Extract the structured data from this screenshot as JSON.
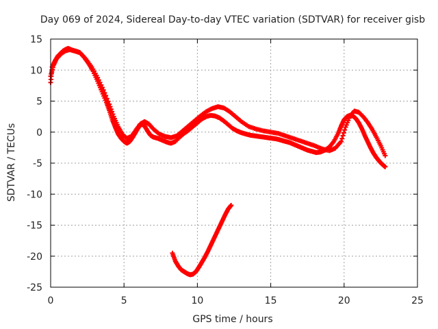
{
  "chart_data": {
    "type": "scatter",
    "title": "Day 069 of 2024, Sidereal Day-to-day VTEC variation (SDTVAR) for receiver gisb",
    "xlabel": "GPS time / hours",
    "ylabel": "SDTVAR / TECUs",
    "xlim": [
      0,
      25
    ],
    "ylim": [
      -25,
      15
    ],
    "xticks": [
      0,
      5,
      10,
      15,
      20,
      25
    ],
    "yticks": [
      -25,
      -20,
      -15,
      -10,
      -5,
      0,
      5,
      10,
      15
    ],
    "grid": true,
    "marker": "+",
    "series": [
      {
        "name": "main-track",
        "color": "#ff0000",
        "x": [
          0.0,
          0.1,
          0.3,
          0.5,
          0.8,
          1.0,
          1.2,
          1.5,
          1.8,
          2.0,
          2.3,
          2.6,
          2.9,
          3.2,
          3.5,
          3.8,
          4.0,
          4.2,
          4.4,
          4.6,
          4.8,
          5.0,
          5.2,
          5.4,
          5.6,
          5.8,
          6.0,
          6.2,
          6.4,
          6.6,
          6.8,
          7.0,
          7.3,
          7.6,
          7.9,
          8.2,
          8.5,
          8.8,
          9.1,
          9.4,
          9.7,
          10.0,
          10.3,
          10.6,
          10.9,
          11.2,
          11.5,
          11.8,
          12.1,
          12.4,
          12.7,
          13.0,
          13.3,
          13.6,
          13.9,
          14.2,
          14.5,
          14.8,
          15.1,
          15.4,
          15.7,
          16.0,
          16.3,
          16.6,
          16.9,
          17.2,
          17.5,
          17.8,
          18.1,
          18.4,
          18.7,
          19.0,
          19.3,
          19.6,
          19.8,
          20.0,
          20.2,
          20.4,
          20.6,
          20.8,
          21.0,
          21.2,
          21.4,
          21.6,
          21.8,
          22.0,
          22.2,
          22.4,
          22.6,
          22.8
        ],
        "y": [
          8.0,
          10.5,
          11.5,
          12.3,
          13.0,
          13.3,
          13.5,
          13.2,
          13.0,
          12.8,
          12.0,
          11.0,
          9.8,
          8.2,
          6.5,
          4.8,
          3.5,
          2.0,
          0.8,
          -0.3,
          -1.0,
          -1.5,
          -1.8,
          -1.5,
          -0.8,
          0.0,
          0.8,
          1.3,
          1.0,
          0.2,
          -0.5,
          -0.8,
          -1.0,
          -1.3,
          -1.6,
          -1.8,
          -1.5,
          -0.8,
          -0.2,
          0.3,
          0.9,
          1.5,
          2.1,
          2.5,
          2.7,
          2.6,
          2.3,
          1.8,
          1.2,
          0.6,
          0.2,
          -0.1,
          -0.3,
          -0.5,
          -0.6,
          -0.7,
          -0.8,
          -0.9,
          -1.0,
          -1.1,
          -1.3,
          -1.5,
          -1.7,
          -2.0,
          -2.3,
          -2.6,
          -2.9,
          -3.1,
          -3.3,
          -3.2,
          -2.9,
          -2.4,
          -1.5,
          -0.2,
          1.0,
          2.0,
          2.5,
          2.7,
          2.6,
          2.2,
          1.5,
          0.6,
          -0.5,
          -1.5,
          -2.5,
          -3.4,
          -4.1,
          -4.7,
          -5.2,
          -5.6
        ]
      },
      {
        "name": "upper-track",
        "color": "#ff0000",
        "x": [
          0.0,
          0.2,
          0.4,
          0.7,
          1.0,
          1.3,
          1.6,
          2.0,
          2.4,
          2.8,
          3.2,
          3.6,
          4.0,
          4.3,
          4.6,
          4.9,
          5.2,
          5.5,
          5.8,
          6.1,
          6.4,
          6.7,
          7.0,
          7.4,
          7.8,
          8.2,
          8.6,
          9.0,
          9.4,
          9.8,
          10.2,
          10.6,
          11.0,
          11.4,
          11.8,
          12.2,
          12.6,
          13.0,
          13.5,
          14.0,
          14.5,
          15.0,
          15.5,
          16.0,
          16.5,
          17.0,
          17.5,
          18.0,
          18.5,
          19.0,
          19.4,
          19.8,
          20.1,
          20.4,
          20.7,
          21.0,
          21.3,
          21.6,
          21.9,
          22.2,
          22.5,
          22.8
        ],
        "y": [
          9.0,
          10.8,
          11.8,
          12.6,
          13.1,
          13.3,
          13.1,
          12.8,
          11.8,
          10.5,
          8.8,
          6.8,
          4.5,
          2.5,
          0.9,
          -0.4,
          -1.0,
          -0.7,
          0.3,
          1.3,
          1.7,
          1.3,
          0.5,
          -0.3,
          -0.7,
          -0.9,
          -0.6,
          0.2,
          1.0,
          1.8,
          2.6,
          3.3,
          3.8,
          4.1,
          3.9,
          3.3,
          2.5,
          1.7,
          0.9,
          0.5,
          0.2,
          0.0,
          -0.2,
          -0.6,
          -1.0,
          -1.4,
          -1.8,
          -2.2,
          -2.7,
          -3.0,
          -2.6,
          -1.5,
          0.8,
          2.6,
          3.4,
          3.2,
          2.5,
          1.6,
          0.5,
          -0.8,
          -2.2,
          -3.8
        ]
      },
      {
        "name": "lower-arc",
        "color": "#ff0000",
        "x": [
          8.3,
          8.5,
          8.7,
          8.9,
          9.1,
          9.3,
          9.5,
          9.7,
          9.9,
          10.1,
          10.3,
          10.5,
          10.7,
          10.9,
          11.1,
          11.3,
          11.5,
          11.7,
          11.9,
          12.1,
          12.3
        ],
        "y": [
          -19.5,
          -20.8,
          -21.6,
          -22.2,
          -22.5,
          -22.8,
          -23.0,
          -22.9,
          -22.5,
          -21.8,
          -21.0,
          -20.2,
          -19.3,
          -18.3,
          -17.3,
          -16.3,
          -15.3,
          -14.3,
          -13.3,
          -12.4,
          -11.8
        ]
      }
    ]
  }
}
